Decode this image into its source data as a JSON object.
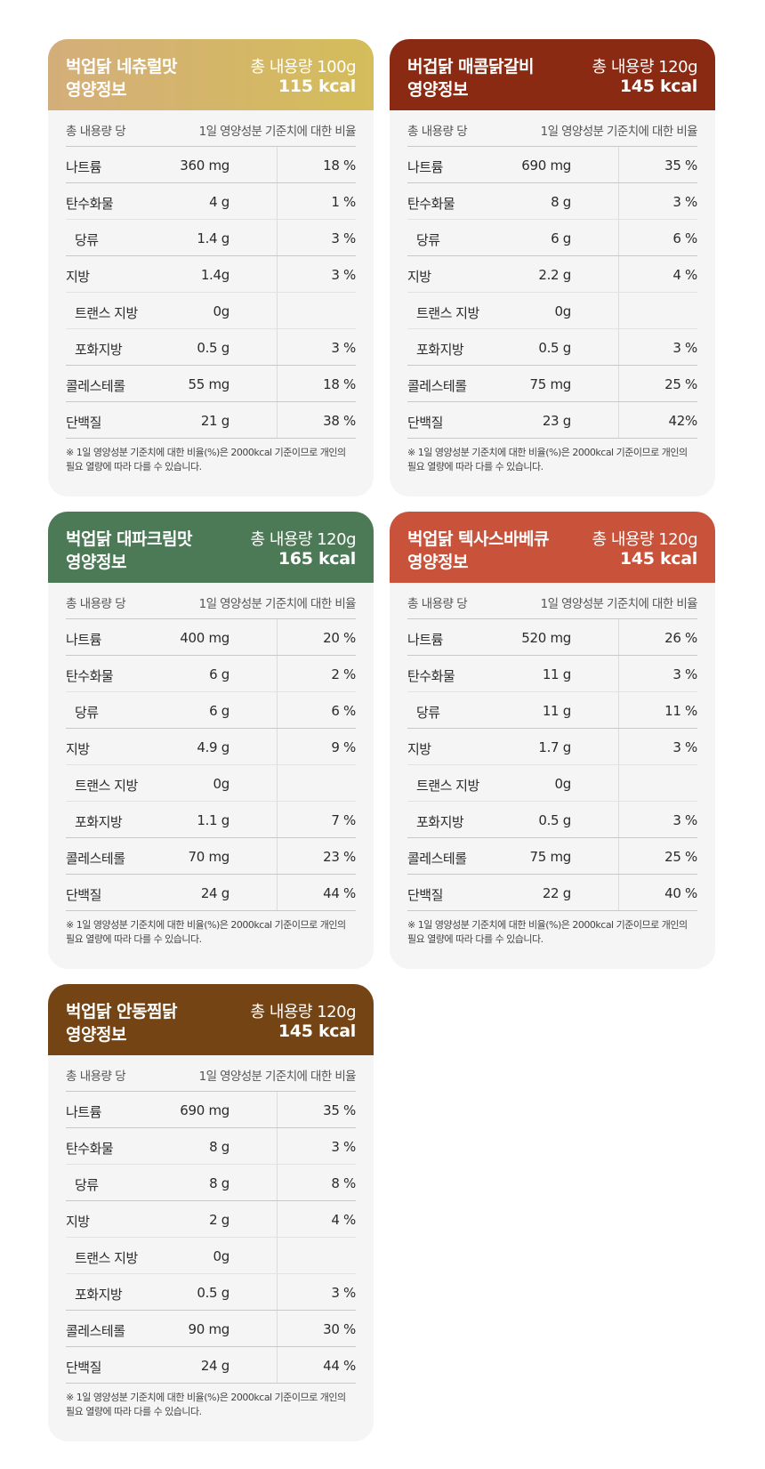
{
  "labels": {
    "per_total": "총 내용량 당",
    "dv_ratio": "1일 영양성분 기준치에 대한 비율",
    "info": "영양정보",
    "footnote_line1": "※ 1일 영양성분 기준치에 대한 비율(%)은 2000kcal 기준이므로 개인의",
    "footnote_line2": "필요 열량에 따라 다를 수 있습니다."
  },
  "nutrient_names": {
    "sodium": "나트륨",
    "carbs": "탄수화물",
    "sugars": "당류",
    "fat": "지방",
    "trans_fat": "트랜스 지방",
    "sat_fat": "포화지방",
    "cholesterol": "콜레스테롤",
    "protein": "단백질"
  },
  "cards": [
    {
      "name": "벅업닭 네츄럴맛",
      "weight": "총 내용량 100g",
      "kcal": "115 kcal",
      "colors": {
        "from": "#d4ae7a",
        "to": "#d4bd5a"
      },
      "rows": {
        "sodium": {
          "amount": "360 mg",
          "pct": "18 %"
        },
        "carbs": {
          "amount": "4 g",
          "pct": "1 %"
        },
        "sugars": {
          "amount": "1.4 g",
          "pct": "3 %"
        },
        "fat": {
          "amount": "1.4g",
          "pct": "3 %"
        },
        "trans_fat": {
          "amount": "0g",
          "pct": ""
        },
        "sat_fat": {
          "amount": "0.5 g",
          "pct": "3 %"
        },
        "cholesterol": {
          "amount": "55 mg",
          "pct": "18 %"
        },
        "protein": {
          "amount": "21 g",
          "pct": "38 %"
        }
      }
    },
    {
      "name": "버겁닭 매콤닭갈비",
      "weight": "총 내용량 120g",
      "kcal": "145 kcal",
      "colors": {
        "from": "#8a2a12",
        "to": "#8a2a12"
      },
      "rows": {
        "sodium": {
          "amount": "690 mg",
          "pct": "35 %"
        },
        "carbs": {
          "amount": "8 g",
          "pct": "3 %"
        },
        "sugars": {
          "amount": "6 g",
          "pct": "6 %"
        },
        "fat": {
          "amount": "2.2 g",
          "pct": "4 %"
        },
        "trans_fat": {
          "amount": "0g",
          "pct": ""
        },
        "sat_fat": {
          "amount": "0.5 g",
          "pct": "3 %"
        },
        "cholesterol": {
          "amount": "75 mg",
          "pct": "25 %"
        },
        "protein": {
          "amount": "23 g",
          "pct": "42%"
        }
      }
    },
    {
      "name": "벅업닭 대파크림맛",
      "weight": "총 내용량 120g",
      "kcal": "165 kcal",
      "colors": {
        "from": "#4c7a56",
        "to": "#4c7a56"
      },
      "rows": {
        "sodium": {
          "amount": "400 mg",
          "pct": "20 %"
        },
        "carbs": {
          "amount": "6 g",
          "pct": "2 %"
        },
        "sugars": {
          "amount": "6 g",
          "pct": "6 %"
        },
        "fat": {
          "amount": "4.9 g",
          "pct": "9 %"
        },
        "trans_fat": {
          "amount": "0g",
          "pct": ""
        },
        "sat_fat": {
          "amount": "1.1 g",
          "pct": "7 %"
        },
        "cholesterol": {
          "amount": "70 mg",
          "pct": "23 %"
        },
        "protein": {
          "amount": "24 g",
          "pct": "44 %"
        }
      }
    },
    {
      "name": "벅업닭 텍사스바베큐",
      "weight": "총 내용량 120g",
      "kcal": "145 kcal",
      "colors": {
        "from": "#c8523a",
        "to": "#c8523a"
      },
      "rows": {
        "sodium": {
          "amount": "520 mg",
          "pct": "26 %"
        },
        "carbs": {
          "amount": "11 g",
          "pct": "3 %"
        },
        "sugars": {
          "amount": "11 g",
          "pct": "11 %"
        },
        "fat": {
          "amount": "1.7 g",
          "pct": "3 %"
        },
        "trans_fat": {
          "amount": "0g",
          "pct": ""
        },
        "sat_fat": {
          "amount": "0.5 g",
          "pct": "3 %"
        },
        "cholesterol": {
          "amount": "75 mg",
          "pct": "25 %"
        },
        "protein": {
          "amount": "22 g",
          "pct": "40 %"
        }
      }
    },
    {
      "name": "벅업닭 안동찜닭",
      "weight": "총 내용량 120g",
      "kcal": "145 kcal",
      "colors": {
        "from": "#744414",
        "to": "#744414"
      },
      "rows": {
        "sodium": {
          "amount": "690 mg",
          "pct": "35 %"
        },
        "carbs": {
          "amount": "8 g",
          "pct": "3 %"
        },
        "sugars": {
          "amount": "8 g",
          "pct": "8 %"
        },
        "fat": {
          "amount": "2 g",
          "pct": "4 %"
        },
        "trans_fat": {
          "amount": "0g",
          "pct": ""
        },
        "sat_fat": {
          "amount": "0.5 g",
          "pct": "3 %"
        },
        "cholesterol": {
          "amount": "90 mg",
          "pct": "30 %"
        },
        "protein": {
          "amount": "24 g",
          "pct": "44 %"
        }
      }
    }
  ]
}
